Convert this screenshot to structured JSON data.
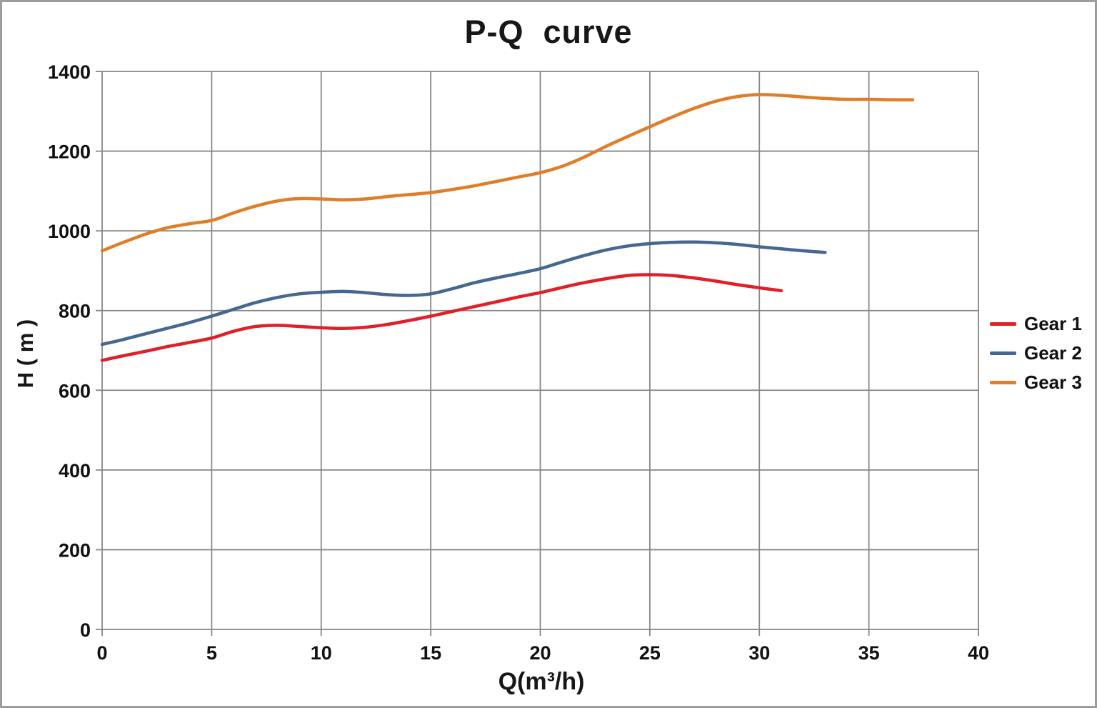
{
  "chart_data": {
    "type": "line",
    "title": "P-Q  curve",
    "xlabel": "Q(m³/h)",
    "ylabel": "H ( m )",
    "xlim": [
      0,
      40
    ],
    "ylim": [
      0,
      1400
    ],
    "xticks": [
      0,
      5,
      10,
      15,
      20,
      25,
      30,
      35,
      40
    ],
    "yticks": [
      0,
      200,
      400,
      600,
      800,
      1000,
      1200,
      1400
    ],
    "grid": true,
    "grid_color": "#868686",
    "axis_color": "#868686",
    "text_color": "#111111",
    "frame_color": "#9d9d9d",
    "legend_position": "right",
    "series": [
      {
        "name": "Gear 1",
        "color": "#e01f28",
        "x": [
          0,
          1,
          2,
          3,
          4,
          5,
          6,
          7,
          8,
          9,
          10,
          11,
          12,
          13,
          14,
          15,
          16,
          17,
          18,
          19,
          20,
          21,
          22,
          23,
          24,
          25,
          26,
          27,
          28,
          29,
          30,
          31
        ],
        "y": [
          675,
          687,
          698,
          710,
          720,
          731,
          748,
          760,
          763,
          760,
          757,
          755,
          758,
          765,
          775,
          786,
          798,
          810,
          822,
          834,
          845,
          858,
          870,
          880,
          888,
          890,
          888,
          882,
          874,
          865,
          857,
          850
        ]
      },
      {
        "name": "Gear 2",
        "color": "#44688f",
        "x": [
          0,
          1,
          2,
          3,
          4,
          5,
          6,
          7,
          8,
          9,
          10,
          11,
          12,
          13,
          14,
          15,
          16,
          17,
          18,
          19,
          20,
          21,
          22,
          23,
          24,
          25,
          26,
          27,
          28,
          29,
          30,
          31,
          32,
          33
        ],
        "y": [
          715,
          728,
          742,
          756,
          770,
          786,
          803,
          820,
          833,
          842,
          846,
          848,
          845,
          840,
          838,
          842,
          855,
          870,
          882,
          893,
          905,
          922,
          938,
          952,
          962,
          968,
          971,
          972,
          970,
          966,
          960,
          955,
          950,
          946
        ]
      },
      {
        "name": "Gear 3",
        "color": "#e07d28",
        "x": [
          0,
          1,
          2,
          3,
          4,
          5,
          6,
          7,
          8,
          9,
          10,
          11,
          12,
          13,
          14,
          15,
          16,
          17,
          18,
          19,
          20,
          21,
          22,
          23,
          24,
          25,
          26,
          27,
          28,
          29,
          30,
          31,
          32,
          33,
          34,
          35,
          36,
          37
        ],
        "y": [
          950,
          972,
          992,
          1008,
          1018,
          1026,
          1045,
          1062,
          1075,
          1081,
          1080,
          1078,
          1080,
          1086,
          1091,
          1096,
          1104,
          1113,
          1124,
          1135,
          1146,
          1162,
          1185,
          1212,
          1237,
          1261,
          1285,
          1307,
          1325,
          1337,
          1342,
          1340,
          1336,
          1332,
          1330,
          1330,
          1329,
          1329
        ]
      }
    ]
  }
}
